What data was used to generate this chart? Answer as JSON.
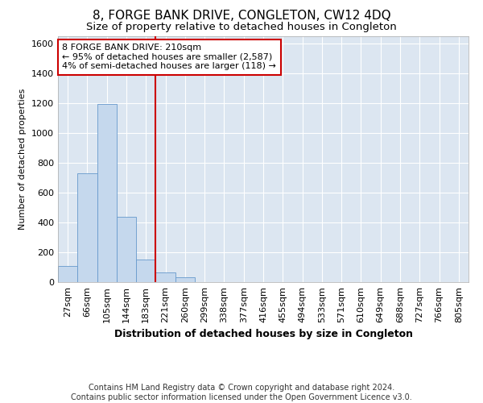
{
  "title": "8, FORGE BANK DRIVE, CONGLETON, CW12 4DQ",
  "subtitle": "Size of property relative to detached houses in Congleton",
  "xlabel": "Distribution of detached houses by size in Congleton",
  "ylabel": "Number of detached properties",
  "bar_color": "#c5d8ed",
  "bar_edge_color": "#6699cc",
  "vline_color": "#cc0000",
  "annotation_text": "8 FORGE BANK DRIVE: 210sqm\n← 95% of detached houses are smaller (2,587)\n4% of semi-detached houses are larger (118) →",
  "annotation_box_color": "white",
  "annotation_box_edge": "#cc0000",
  "categories": [
    "27sqm",
    "66sqm",
    "105sqm",
    "144sqm",
    "183sqm",
    "221sqm",
    "260sqm",
    "299sqm",
    "338sqm",
    "377sqm",
    "416sqm",
    "455sqm",
    "494sqm",
    "533sqm",
    "571sqm",
    "610sqm",
    "649sqm",
    "688sqm",
    "727sqm",
    "766sqm",
    "805sqm"
  ],
  "values": [
    110,
    730,
    1195,
    440,
    150,
    65,
    35,
    0,
    0,
    0,
    0,
    0,
    0,
    0,
    0,
    0,
    0,
    0,
    0,
    0,
    0
  ],
  "ylim": [
    0,
    1650
  ],
  "yticks": [
    0,
    200,
    400,
    600,
    800,
    1000,
    1200,
    1400,
    1600
  ],
  "footnote": "Contains HM Land Registry data © Crown copyright and database right 2024.\nContains public sector information licensed under the Open Government Licence v3.0.",
  "background_color": "#dce6f1",
  "grid_color": "white",
  "title_fontsize": 11,
  "subtitle_fontsize": 9.5,
  "xlabel_fontsize": 9,
  "ylabel_fontsize": 8,
  "tick_fontsize": 8,
  "footnote_fontsize": 7,
  "annot_fontsize": 8
}
